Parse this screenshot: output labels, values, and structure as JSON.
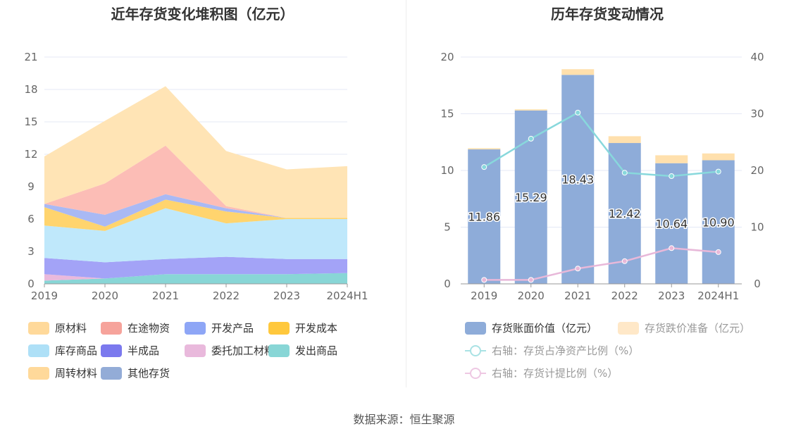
{
  "left_chart": {
    "title": "近年存货变化堆积图（亿元）",
    "chart_data": {
      "type": "area",
      "stacked": true,
      "x": [
        "2019",
        "2020",
        "2021",
        "2022",
        "2023",
        "2024H1"
      ],
      "ylim": [
        0,
        21
      ],
      "yticks": [
        0,
        3,
        6,
        9,
        12,
        15,
        18,
        21
      ],
      "grid": true,
      "series": [
        {
          "name": "发出商品",
          "color": "#88d6d6",
          "values": [
            0.3,
            0.5,
            0.9,
            0.9,
            0.9,
            1.0
          ]
        },
        {
          "name": "委托加工材料",
          "color": "#e9b9dc",
          "values": [
            0.6,
            0.0,
            0.0,
            0.0,
            0.0,
            0.0
          ]
        },
        {
          "name": "半成品",
          "color": "#a3a3f7",
          "values": [
            1.5,
            1.5,
            1.4,
            1.6,
            1.4,
            1.3
          ]
        },
        {
          "name": "库存商品",
          "color": "#bfe8fb",
          "values": [
            3.0,
            2.9,
            4.7,
            3.1,
            3.7,
            3.7
          ]
        },
        {
          "name": "开发成本",
          "color": "#ffd46e",
          "values": [
            1.7,
            0.4,
            0.8,
            1.1,
            0.1,
            0.1
          ]
        },
        {
          "name": "开发产品",
          "color": "#a9b9f4",
          "values": [
            0.3,
            1.1,
            0.5,
            0.3,
            0.0,
            0.0
          ]
        },
        {
          "name": "在途物资",
          "color": "#fcbdb6",
          "values": [
            0.0,
            2.9,
            4.5,
            0.2,
            0.0,
            0.0
          ]
        },
        {
          "name": "原材料",
          "color": "#ffe4b5",
          "values": [
            4.4,
            5.8,
            5.5,
            5.1,
            4.5,
            4.8
          ]
        },
        {
          "name": "周转材料",
          "color": "#ffe4b5",
          "values": [
            0.0,
            0.0,
            0.0,
            0.0,
            0.0,
            0.0
          ]
        },
        {
          "name": "其他存货",
          "color": "#93acd7",
          "values": [
            0.0,
            0.0,
            0.0,
            0.0,
            0.0,
            0.0
          ]
        }
      ]
    },
    "legend": [
      {
        "name": "原材料",
        "color": "#ffd99a"
      },
      {
        "name": "在途物资",
        "color": "#f6a39b"
      },
      {
        "name": "开发产品",
        "color": "#8ea6f6"
      },
      {
        "name": "开发成本",
        "color": "#ffc83d"
      },
      {
        "name": "库存商品",
        "color": "#aee0f7"
      },
      {
        "name": "半成品",
        "color": "#7b79ee"
      },
      {
        "name": "委托加工材料",
        "color": "#e9b9dc"
      },
      {
        "name": "发出商品",
        "color": "#88d6d6"
      },
      {
        "name": "周转材料",
        "color": "#ffd99a"
      },
      {
        "name": "其他存货",
        "color": "#93acd7"
      }
    ]
  },
  "right_chart": {
    "title": "历年存货变动情况",
    "chart_data": {
      "type": "bar",
      "x": [
        "2019",
        "2020",
        "2021",
        "2022",
        "2023",
        "2024H1"
      ],
      "ylim": [
        0,
        20
      ],
      "yticks": [
        0,
        5,
        10,
        15,
        20
      ],
      "y2lim": [
        0,
        40
      ],
      "y2ticks": [
        0,
        10,
        20,
        30,
        40
      ],
      "grid": true,
      "series": [
        {
          "name": "存货账面价值（亿元）",
          "type": "bar",
          "stack": "inv",
          "color": "#8eacd9",
          "values": [
            11.86,
            15.29,
            18.43,
            12.42,
            10.64,
            10.9
          ],
          "labels": [
            "11.86",
            "15.29",
            "18.43",
            "12.42",
            "10.64",
            "10.90"
          ]
        },
        {
          "name": "存货跌价准备（亿元）",
          "type": "bar",
          "stack": "inv",
          "color": "#ffe0ad",
          "values": [
            0.1,
            0.1,
            0.5,
            0.6,
            0.7,
            0.6
          ]
        },
        {
          "name": "右轴：存货占净资产比例（%）",
          "type": "line",
          "axis": "right",
          "color": "#88d8dc",
          "values": [
            20.6,
            25.6,
            30.2,
            19.6,
            19.0,
            19.8
          ]
        },
        {
          "name": "右轴：存货计提比例（%）",
          "type": "line",
          "axis": "right",
          "color": "#e8b8d9",
          "values": [
            0.7,
            0.7,
            2.7,
            4.0,
            6.3,
            5.6
          ]
        }
      ]
    },
    "legend": [
      {
        "name": "存货账面价值（亿元）",
        "kind": "bar",
        "color": "#8eacd9"
      },
      {
        "name": "存货跌价准备（亿元）",
        "kind": "bar",
        "color": "#ffe8c8"
      },
      {
        "name": "右轴：存货占净资产比例（%）",
        "kind": "line",
        "color": "#a9e2e4"
      },
      {
        "name": "右轴：存货计提比例（%）",
        "kind": "line",
        "color": "#eec8e3"
      }
    ]
  },
  "source": "数据来源：恒生聚源"
}
